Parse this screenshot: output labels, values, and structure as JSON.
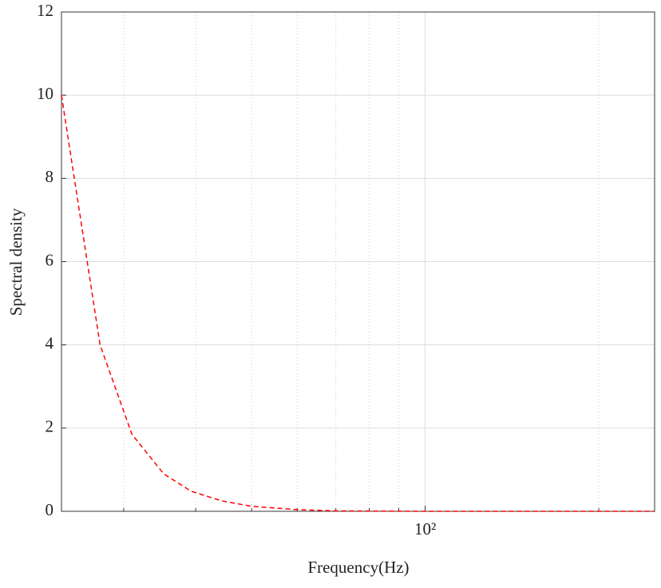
{
  "chart_data": {
    "type": "line",
    "xlabel": "Frequency(Hz)",
    "ylabel": "Spectral density",
    "x": [
      23.4,
      27.3,
      31,
      35.2,
      39.3,
      44.4,
      50,
      60,
      70,
      100,
      250
    ],
    "series": [
      {
        "color": "#ff0000",
        "dash": true,
        "values": [
          10.0,
          4.0,
          1.85,
          0.9,
          0.48,
          0.25,
          0.12,
          0.04,
          0.01,
          0,
          0
        ]
      }
    ],
    "xlim": [
      23.4,
      250
    ],
    "xscale": "log",
    "xticks": [
      {
        "value": 100,
        "label": "10²"
      }
    ],
    "xminorticks": [
      30,
      40,
      50,
      60,
      70,
      80,
      90,
      200
    ],
    "ylim": [
      0,
      12
    ],
    "yticks": [
      0,
      2,
      4,
      6,
      8,
      10,
      12
    ],
    "grid": true
  }
}
